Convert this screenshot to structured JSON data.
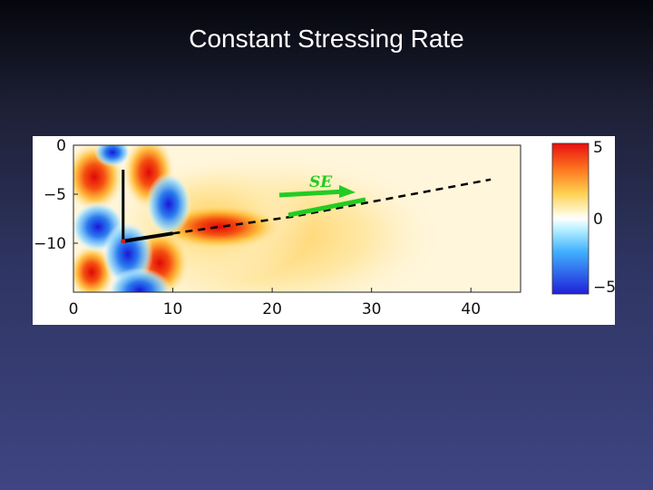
{
  "slide": {
    "title": "Constant Stressing Rate"
  },
  "chart_data": {
    "type": "heatmap",
    "title": "Constant Stressing Rate",
    "xlabel": "",
    "ylabel": "",
    "xlim": [
      0,
      45
    ],
    "ylim": [
      -15,
      0
    ],
    "x_ticks": [
      0,
      10,
      20,
      30,
      40
    ],
    "x_tick_labels": [
      "0",
      "10",
      "20",
      "30",
      "40"
    ],
    "y_ticks": [
      0,
      -5,
      -10
    ],
    "y_tick_labels": [
      "0",
      "−5",
      "−10"
    ],
    "colorbar": {
      "range": [
        -5,
        5
      ],
      "ticks": [
        5,
        0,
        -5
      ],
      "tick_labels": [
        "5",
        "0",
        "−5"
      ],
      "colormap": [
        "#2020e0",
        "#30a0ff",
        "#a8e8ff",
        "#ffffff",
        "#fff0a0",
        "#ffb020",
        "#e81010"
      ]
    },
    "fault_trace": {
      "x": [
        5,
        10,
        22,
        42
      ],
      "y": [
        -9.8,
        -9.0,
        -7.3,
        -3.5
      ]
    },
    "vertical_fault": {
      "x": [
        5,
        5
      ],
      "y": [
        -2.5,
        -9.8
      ]
    },
    "annotation": {
      "text": "SE",
      "color": "#22cc22"
    },
    "grid": false
  }
}
